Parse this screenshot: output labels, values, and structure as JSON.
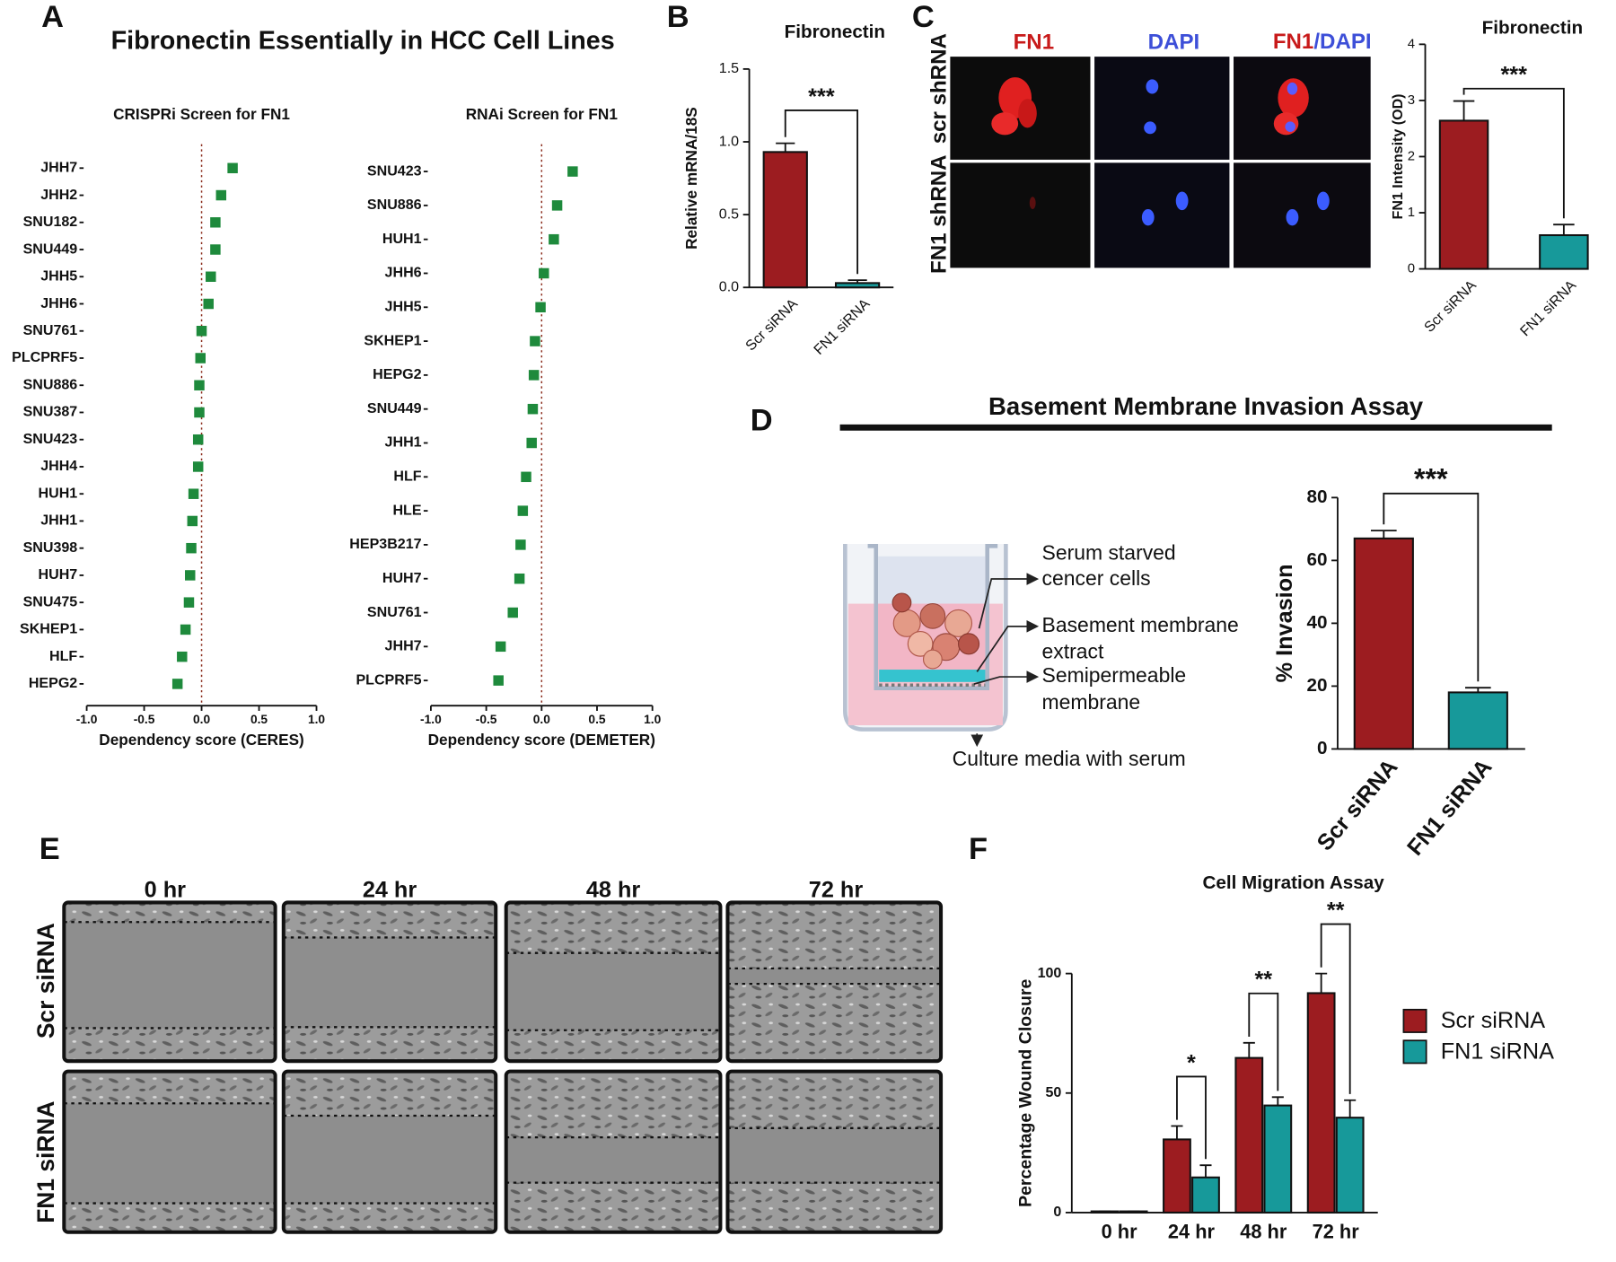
{
  "figure": {
    "panel_labels": [
      "A",
      "B",
      "C",
      "D",
      "E",
      "F"
    ],
    "panel_a_title": "Fibronectin Essentially in HCC Cell Lines",
    "panel_c": {
      "columns": [
        "FN1",
        "DAPI"
      ],
      "merged": [
        "FN1",
        "/DAPI"
      ],
      "rows": [
        "scr shRNA",
        "FN1 shRNA"
      ]
    },
    "panel_d": {
      "title": "Basement Membrane Invasion Assay",
      "labels": [
        "Serum starved",
        "cencer cells",
        "Basement membrane",
        "extract",
        "Semipermeable",
        "membrane",
        "Culture media with serum"
      ]
    },
    "panel_e": {
      "columns": [
        "0 hr",
        "24 hr",
        "48 hr",
        "72 hr"
      ],
      "rows": [
        "Scr siRNA",
        "FN1 siRNA"
      ]
    }
  },
  "chart_data": [
    {
      "type": "dot",
      "title": "CRISPRi Screen for FN1",
      "xlabel": "Dependency score (CERES)",
      "categories": [
        "JHH7",
        "JHH2",
        "SNU182",
        "SNU449",
        "JHH5",
        "JHH6",
        "SNU761",
        "PLCPRF5",
        "SNU886",
        "SNU387",
        "SNU423",
        "JHH4",
        "HUH1",
        "JHH1",
        "SNU398",
        "HUH7",
        "SNU475",
        "SKHEP1",
        "HLF",
        "HEPG2"
      ],
      "values": [
        0.27,
        0.17,
        0.12,
        0.12,
        0.08,
        0.06,
        0.0,
        -0.01,
        -0.02,
        -0.02,
        -0.03,
        -0.03,
        -0.07,
        -0.08,
        -0.09,
        -0.1,
        -0.11,
        -0.14,
        -0.17,
        -0.21
      ],
      "color": "#1e8a3c",
      "xlim": [
        -1,
        1
      ],
      "xticks": [
        {
          "value": -1,
          "label": "-1.0"
        },
        -0.5,
        {
          "value": 0,
          "label": "0.0"
        },
        0.5,
        {
          "value": 1,
          "label": "1.0"
        }
      ]
    },
    {
      "type": "dot",
      "title": "RNAi Screen for FN1",
      "xlabel": "Dependency score (DEMETER)",
      "categories": [
        "SNU423",
        "SNU886",
        "HUH1",
        "JHH6",
        "JHH5",
        "SKHEP1",
        "HEPG2",
        "SNU449",
        "JHH1",
        "HLF",
        "HLE",
        "HEP3B217",
        "HUH7",
        "SNU761",
        "JHH7",
        "PLCPRF5"
      ],
      "values": [
        0.28,
        0.14,
        0.11,
        0.02,
        -0.01,
        -0.06,
        -0.07,
        -0.08,
        -0.09,
        -0.14,
        -0.17,
        -0.19,
        -0.2,
        -0.26,
        -0.37,
        -0.39
      ],
      "color": "#1e8a3c",
      "xlim": [
        -1,
        1
      ],
      "xticks": [
        {
          "value": -1,
          "label": "-1.0"
        },
        -0.5,
        {
          "value": 0,
          "label": "0.0"
        },
        0.5,
        {
          "value": 1,
          "label": "1.0"
        }
      ]
    },
    {
      "type": "bar",
      "title": "Fibronectin",
      "ylabel": "Relative mRNA/18S",
      "categories": [
        "Scr siRNA",
        "FN1 siRNA"
      ],
      "values": [
        0.93,
        0.03
      ],
      "errors": [
        0.06,
        0.02
      ],
      "colors": [
        "#9c1c20",
        "#17999a"
      ],
      "ylim": [
        0,
        1.5
      ],
      "yticks": [
        {
          "value": 0,
          "label": "0.0"
        },
        0.5,
        {
          "value": 1,
          "label": "1.0"
        },
        1.5
      ],
      "annotation": "***"
    },
    {
      "type": "bar",
      "title": "Fibronectin",
      "ylabel": "FN1 Intensity (OD)",
      "categories": [
        "Scr siRNA",
        "FN1 siRNA"
      ],
      "values": [
        2.64,
        0.6
      ],
      "errors": [
        0.35,
        0.19
      ],
      "colors": [
        "#9c1c20",
        "#17999a"
      ],
      "ylim": [
        0,
        4
      ],
      "yticks": [
        0,
        1,
        2,
        3,
        4
      ],
      "annotation": "***"
    },
    {
      "type": "bar",
      "ylabel": "% Invasion",
      "categories": [
        "Scr siRNA",
        "FN1 siRNA"
      ],
      "values": [
        67,
        18
      ],
      "errors": [
        2.5,
        1.5
      ],
      "colors": [
        "#9c1c20",
        "#17999a"
      ],
      "ylim": [
        0,
        80
      ],
      "yticks": [
        0,
        20,
        40,
        60,
        80
      ],
      "annotation": "***"
    },
    {
      "type": "bar",
      "title": "Cell Migration Assay",
      "ylabel": "Percentage Wound Closure",
      "categories": [
        "0 hr",
        "24 hr",
        "48 hr",
        "72 hr"
      ],
      "series": [
        {
          "name": "Scr siRNA",
          "color": "#9c1c20",
          "values": [
            0.5,
            30.6,
            64.7,
            91.8
          ],
          "errors": [
            0,
            5.6,
            6.3,
            8.2
          ]
        },
        {
          "name": "FN1 siRNA",
          "color": "#17999a",
          "values": [
            0.5,
            14.7,
            44.8,
            39.7
          ],
          "errors": [
            0,
            5.1,
            3.5,
            7.3
          ]
        }
      ],
      "ylim": [
        0,
        100
      ],
      "yticks": [
        0,
        50,
        100
      ],
      "annotations": [
        null,
        "*",
        "**",
        "**"
      ],
      "legend": "right"
    }
  ]
}
